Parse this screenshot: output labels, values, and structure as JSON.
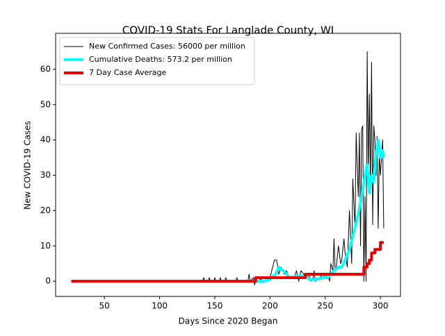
{
  "chart_data": {
    "type": "line",
    "title": "COVID-19 Stats For Langlade County, WI",
    "xlabel": "Days Since 2020 Began",
    "ylabel": "New COVID-19 Cases",
    "xlim": [
      5.8,
      318.2
    ],
    "ylim": [
      -4.3,
      70.2
    ],
    "xticks": [
      50,
      100,
      150,
      200,
      250,
      300
    ],
    "yticks": [
      0,
      10,
      20,
      30,
      40,
      50,
      60
    ],
    "legend": "upper left",
    "series": [
      {
        "name": "New Confirmed Cases: 56000 per million",
        "color": "#000000",
        "width": 1,
        "x": [
          20,
          139,
          140,
          141,
          144,
          145,
          146,
          149,
          150,
          151,
          154,
          155,
          156,
          159,
          160,
          161,
          169,
          170,
          171,
          180,
          181,
          182,
          185,
          186,
          187,
          188,
          195,
          200,
          204,
          206,
          208,
          210,
          213,
          215,
          217,
          222,
          224,
          226,
          228,
          233,
          235,
          237,
          239,
          240,
          241,
          245,
          248,
          250,
          252,
          254,
          255,
          257,
          258,
          259,
          260,
          262,
          264,
          265,
          267,
          268,
          270,
          272,
          274,
          275,
          277,
          278,
          280,
          281,
          282,
          283,
          284,
          285,
          286,
          287,
          288,
          289,
          290,
          291,
          292,
          293,
          294,
          295,
          296,
          297,
          298,
          299,
          300,
          301,
          302,
          303
        ],
        "values": [
          0,
          0,
          1,
          0,
          0,
          1,
          0,
          0,
          1,
          0,
          0,
          1,
          0,
          0,
          1,
          0,
          0,
          1,
          0,
          0,
          2,
          0,
          1,
          -1,
          0,
          1,
          0,
          1,
          6,
          6,
          2,
          4,
          2,
          3,
          1,
          1,
          3,
          0,
          3,
          1,
          2,
          0,
          1,
          3,
          0,
          1,
          2,
          1,
          2,
          0,
          5,
          3,
          12,
          3,
          4,
          10,
          5,
          6,
          12,
          8,
          4,
          20,
          5,
          29,
          15,
          42,
          24,
          42,
          10,
          43,
          44,
          0,
          24,
          0,
          65,
          30,
          53,
          26,
          62,
          16,
          44,
          40,
          30,
          41,
          15,
          36,
          30,
          35,
          40,
          15
        ]
      },
      {
        "name": "Cumulative Deaths: 573.2 per million",
        "color": "#00ffff",
        "width": 4,
        "x": [
          20,
          185,
          195,
          200,
          205,
          208,
          212,
          218,
          225,
          232,
          236,
          242,
          248,
          252,
          255,
          258,
          262,
          265,
          268,
          272,
          276,
          280,
          283,
          286,
          288,
          290,
          292,
          294,
          296,
          298,
          300,
          302,
          303
        ],
        "values": [
          0,
          0,
          0,
          0.5,
          2,
          4,
          3,
          1,
          1.5,
          1.5,
          0.5,
          0.5,
          1,
          1,
          2,
          3,
          4,
          4,
          6,
          9,
          14,
          19,
          24,
          30,
          33,
          25,
          30,
          28,
          36,
          40,
          35,
          37,
          35
        ]
      },
      {
        "name": "7 Day Case Average",
        "color": "#e60000",
        "width": 4,
        "x": [
          20,
          187,
          187,
          232,
          232,
          285,
          285,
          288,
          288,
          290,
          290,
          292,
          292,
          295,
          295,
          300,
          300,
          303
        ],
        "values": [
          0,
          0,
          1,
          1,
          2,
          2,
          4,
          4,
          5,
          5,
          6,
          6,
          8,
          8,
          9,
          9,
          11,
          11
        ]
      }
    ]
  }
}
